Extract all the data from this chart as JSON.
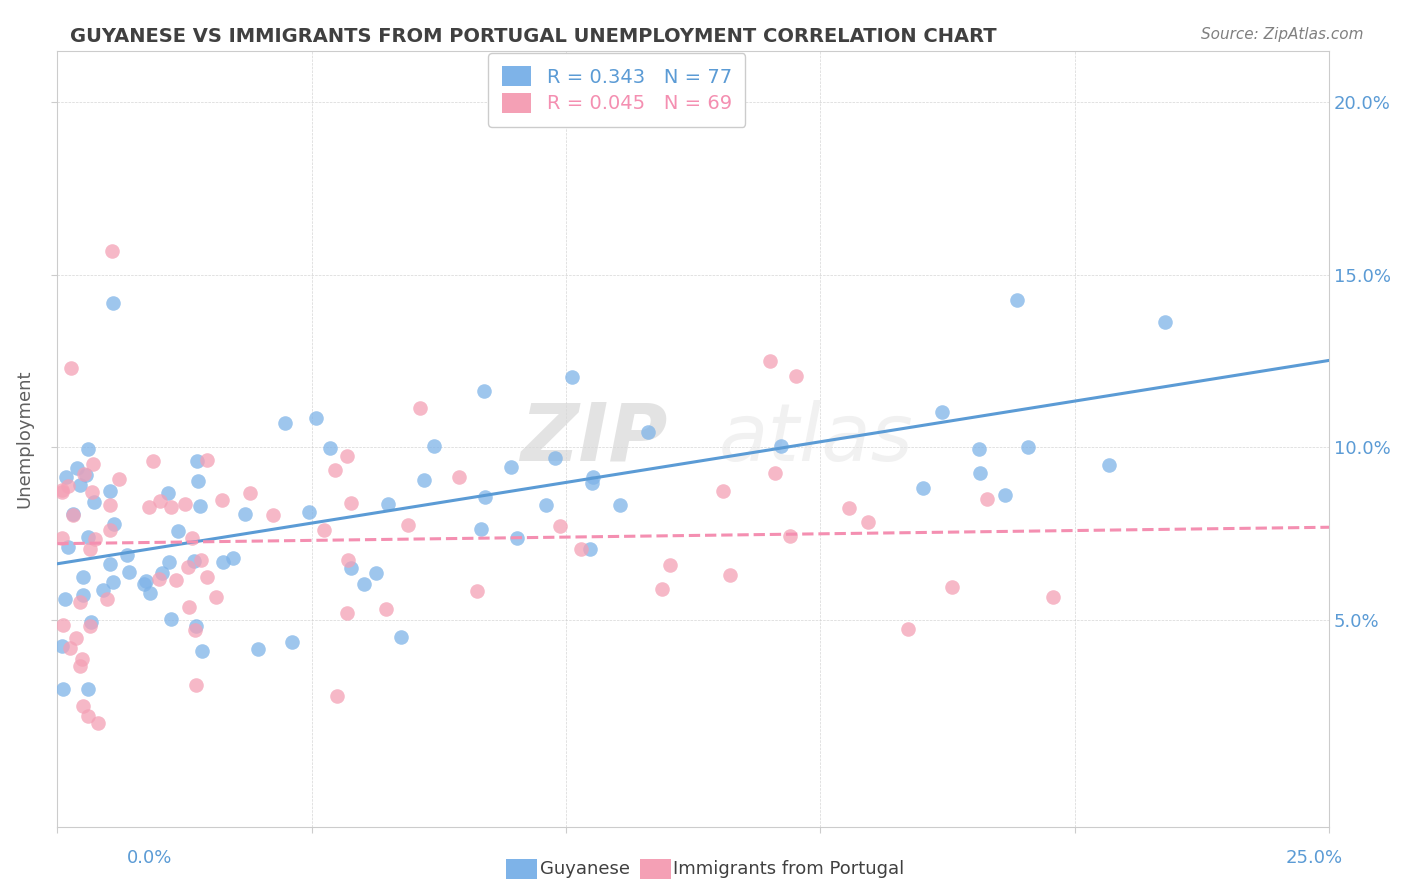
{
  "title": "GUYANESE VS IMMIGRANTS FROM PORTUGAL UNEMPLOYMENT CORRELATION CHART",
  "source": "Source: ZipAtlas.com",
  "ylabel": "Unemployment",
  "xlim": [
    0.0,
    0.25
  ],
  "ylim": [
    -0.01,
    0.215
  ],
  "yticks": [
    0.05,
    0.1,
    0.15,
    0.2
  ],
  "ytick_labels": [
    "5.0%",
    "10.0%",
    "15.0%",
    "20.0%"
  ],
  "xtick_left_label": "0.0%",
  "xtick_right_label": "25.0%",
  "legend_line1": "R = 0.343   N = 77",
  "legend_line2": "R = 0.045   N = 69",
  "color_blue": "#7eb3e8",
  "color_pink": "#f4a0b5",
  "color_blue_line": "#5b9bd5",
  "color_pink_line": "#f48fb1",
  "color_title": "#404040",
  "color_source": "#808080",
  "color_axis_labels": "#5b9bd5",
  "background_color": "#ffffff",
  "watermark_zip": "ZIP",
  "watermark_atlas": "atlas",
  "seed": 42
}
